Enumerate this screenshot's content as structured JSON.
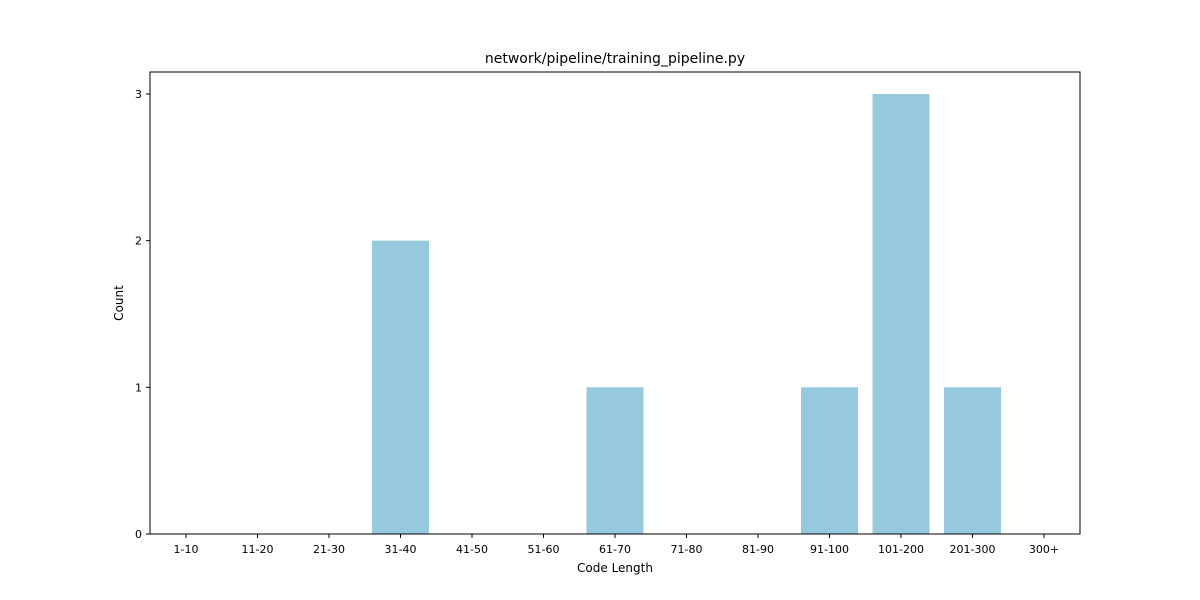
{
  "chart_data": {
    "type": "bar",
    "title": "network/pipeline/training_pipeline.py",
    "xlabel": "Code Length",
    "ylabel": "Count",
    "categories": [
      "1-10",
      "11-20",
      "21-30",
      "31-40",
      "41-50",
      "51-60",
      "61-70",
      "71-80",
      "81-90",
      "91-100",
      "101-200",
      "201-300",
      "300+"
    ],
    "values": [
      0,
      0,
      0,
      2,
      0,
      0,
      1,
      0,
      0,
      1,
      3,
      1,
      0
    ],
    "ylim": [
      0,
      3.15
    ],
    "yticks": [
      0,
      1,
      2,
      3
    ],
    "grid": false,
    "bar_color": "#96c9de",
    "axis_color": "#000000"
  }
}
